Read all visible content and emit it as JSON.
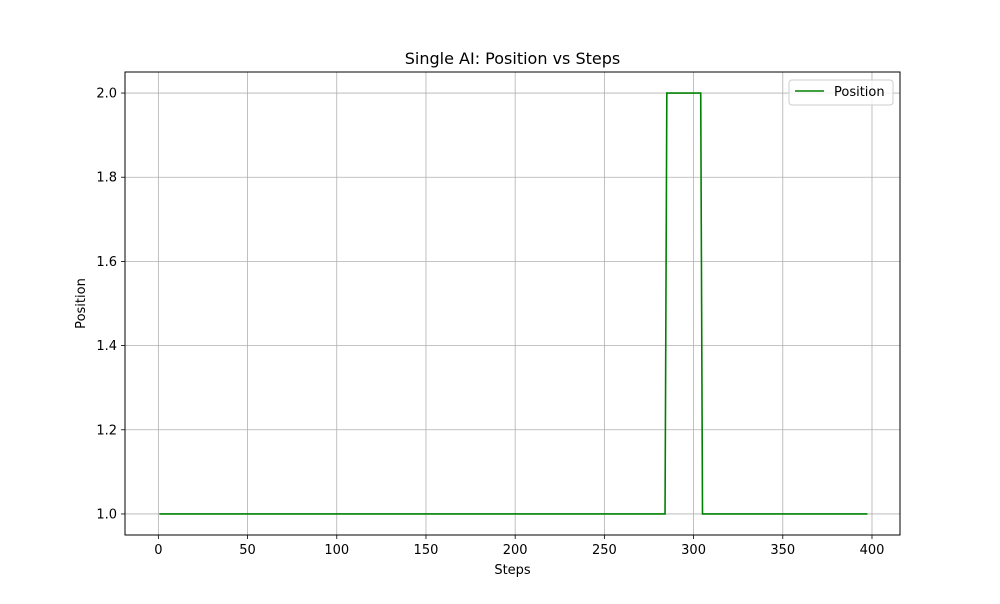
{
  "chart_data": {
    "type": "line",
    "title": "Single AI: Position vs Steps",
    "xlabel": "Steps",
    "ylabel": "Position",
    "xlim": [
      -18.7,
      415.7
    ],
    "ylim": [
      0.95,
      2.05
    ],
    "xticks": [
      0,
      50,
      100,
      150,
      200,
      250,
      300,
      350,
      400
    ],
    "yticks": [
      1.0,
      1.2,
      1.4,
      1.6,
      1.8,
      2.0
    ],
    "xtick_labels": [
      "0",
      "50",
      "100",
      "150",
      "200",
      "250",
      "300",
      "350",
      "400"
    ],
    "ytick_labels": [
      "1.0",
      "1.2",
      "1.4",
      "1.6",
      "1.8",
      "2.0"
    ],
    "grid": true,
    "legend_position": "top-right",
    "series": [
      {
        "name": "Position",
        "color": "#008000",
        "x": [
          1,
          284,
          285,
          304,
          305,
          397
        ],
        "y": [
          1,
          1,
          2,
          2,
          1,
          1
        ]
      }
    ]
  }
}
